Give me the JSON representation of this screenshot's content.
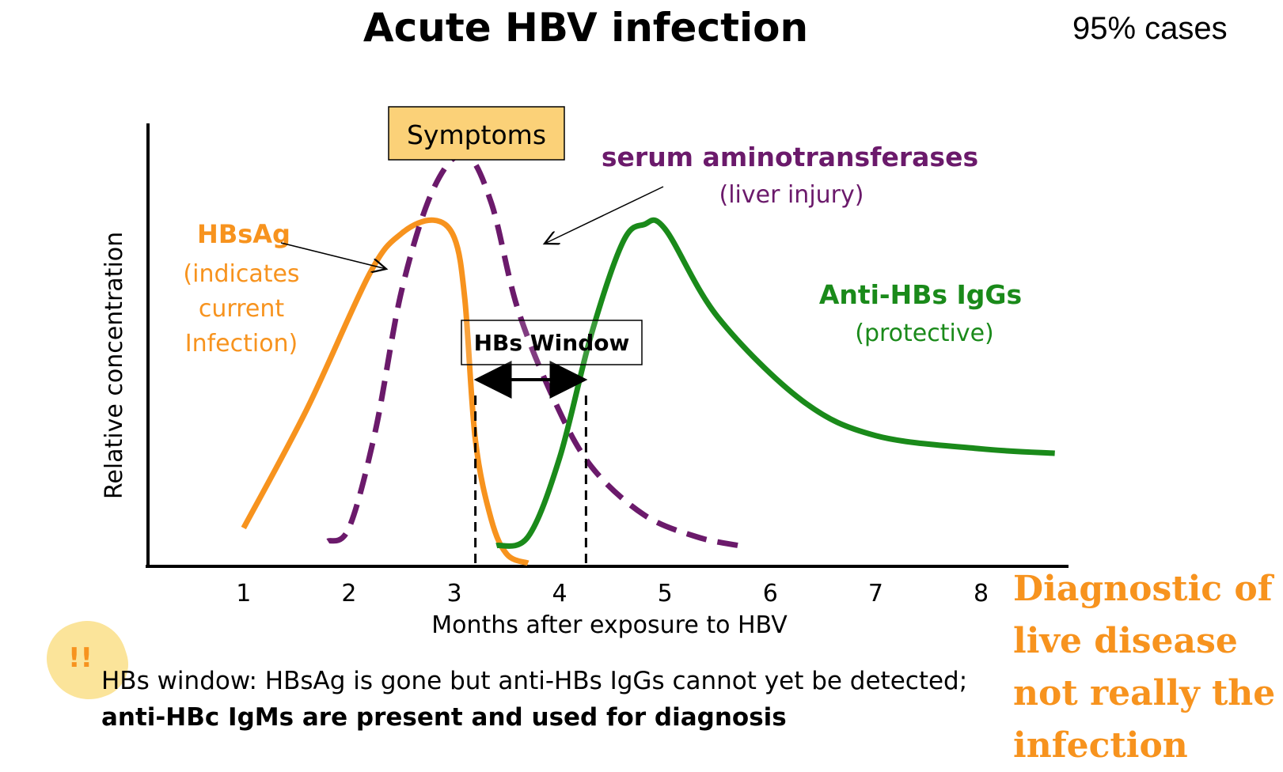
{
  "title": "Acute HBV infection",
  "case_note": "95% cases",
  "chart_data": {
    "type": "line",
    "xlabel": "Months after exposure to HBV",
    "ylabel": "Relative concentration",
    "x_ticks": [
      "1",
      "2",
      "3",
      "4",
      "5",
      "6",
      "7",
      "8"
    ],
    "xlim": [
      0.1,
      8.8
    ],
    "ylim": [
      0,
      1
    ],
    "series": [
      {
        "name": "HBsAg",
        "note": "(indicates current Infection)",
        "color": "#f7931e",
        "style": "solid",
        "points": [
          [
            1.0,
            0.08
          ],
          [
            1.6,
            0.35
          ],
          [
            2.2,
            0.66
          ],
          [
            2.5,
            0.75
          ],
          [
            2.8,
            0.78
          ],
          [
            3.0,
            0.74
          ],
          [
            3.1,
            0.6
          ],
          [
            3.2,
            0.28
          ],
          [
            3.35,
            0.1
          ],
          [
            3.5,
            0.02
          ],
          [
            3.7,
            0.0
          ]
        ]
      },
      {
        "name": "serum aminotransferases",
        "note": "(liver injury)",
        "color": "#6b1a6b",
        "style": "dashed",
        "points": [
          [
            1.8,
            0.05
          ],
          [
            2.0,
            0.08
          ],
          [
            2.25,
            0.3
          ],
          [
            2.5,
            0.62
          ],
          [
            2.8,
            0.85
          ],
          [
            3.1,
            0.93
          ],
          [
            3.35,
            0.82
          ],
          [
            3.6,
            0.58
          ],
          [
            3.95,
            0.37
          ],
          [
            4.3,
            0.22
          ],
          [
            4.8,
            0.11
          ],
          [
            5.3,
            0.06
          ],
          [
            5.7,
            0.04
          ]
        ]
      },
      {
        "name": "Anti-HBs IgGs",
        "note": "(protective)",
        "color": "#1a8a1a",
        "style": "solid",
        "points": [
          [
            3.4,
            0.04
          ],
          [
            3.7,
            0.06
          ],
          [
            4.0,
            0.24
          ],
          [
            4.3,
            0.52
          ],
          [
            4.6,
            0.73
          ],
          [
            4.8,
            0.77
          ],
          [
            5.0,
            0.76
          ],
          [
            5.5,
            0.56
          ],
          [
            6.3,
            0.37
          ],
          [
            7.0,
            0.29
          ],
          [
            8.0,
            0.26
          ],
          [
            8.7,
            0.25
          ]
        ]
      }
    ],
    "annotations": {
      "symptoms_label": "Symptoms",
      "window_label": "HBs Window",
      "window_range": [
        3.2,
        4.25
      ]
    }
  },
  "footnote": {
    "text_plain": "HBs window: HBsAg is gone but anti-HBs IgGs cannot yet be detected;",
    "text_bold": "anti-HBc IgMs are present and used for diagnosis"
  },
  "side_note": [
    "Diagnostic of",
    "live disease",
    "not really the",
    "infection"
  ],
  "alert_mark": "!!",
  "colors": {
    "hbsag": "#f7931e",
    "aminotransferases": "#6b1a6b",
    "anti_hbs": "#1a8a1a",
    "symptoms_box": "#fbd178",
    "side_note": "#f7931e"
  }
}
